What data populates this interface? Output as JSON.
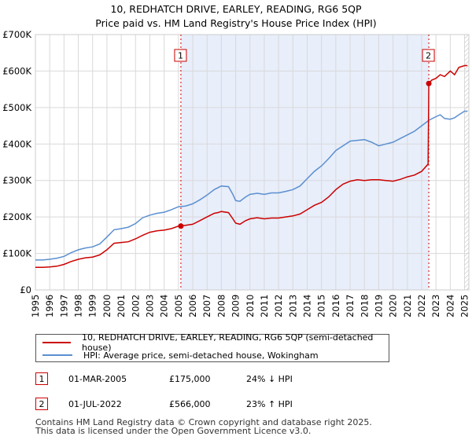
{
  "title": {
    "line1": "10, REDHATCH DRIVE, EARLEY, READING, RG6 5QP",
    "line2": "Price paid vs. HM Land Registry's House Price Index (HPI)"
  },
  "colors": {
    "property": "#cc0000",
    "hpi": "#5b8fd0",
    "shade": "#e8eefa",
    "marker_line": "#cc0000"
  },
  "chart_data": {
    "type": "line",
    "x_range": [
      1995.0,
      2025.3
    ],
    "ylim": [
      0,
      700000
    ],
    "y_ticks": [
      {
        "value": 0,
        "label": "£0"
      },
      {
        "value": 100000,
        "label": "£100K"
      },
      {
        "value": 200000,
        "label": "£200K"
      },
      {
        "value": 300000,
        "label": "£300K"
      },
      {
        "value": 400000,
        "label": "£400K"
      },
      {
        "value": 500000,
        "label": "£500K"
      },
      {
        "value": 600000,
        "label": "£600K"
      },
      {
        "value": 700000,
        "label": "£700K"
      }
    ],
    "x_ticks": [
      "1995",
      "1996",
      "1997",
      "1998",
      "1999",
      "2000",
      "2001",
      "2002",
      "2003",
      "2004",
      "2005",
      "2006",
      "2007",
      "2008",
      "2009",
      "2010",
      "2011",
      "2012",
      "2013",
      "2014",
      "2015",
      "2016",
      "2017",
      "2018",
      "2019",
      "2020",
      "2021",
      "2022",
      "2023",
      "2024",
      "2025"
    ],
    "shaded_period": [
      2005.17,
      2022.5
    ],
    "markers": [
      {
        "label": "1",
        "x": 2005.17,
        "y": 175000
      },
      {
        "label": "2",
        "x": 2022.5,
        "y": 566000
      }
    ],
    "series": [
      {
        "name": "10, REDHATCH DRIVE, EARLEY, READING, RG6 5QP (semi-detached house)",
        "x": [
          1995,
          1995.5,
          1996,
          1996.5,
          1997,
          1997.5,
          1998,
          1998.5,
          1999,
          1999.5,
          2000,
          2000.5,
          2001,
          2001.5,
          2002,
          2002.5,
          2003,
          2003.5,
          2004,
          2004.5,
          2005,
          2005.17,
          2005.5,
          2006,
          2006.5,
          2007,
          2007.5,
          2007.75,
          2008,
          2008.5,
          2008.8,
          2009,
          2009.3,
          2009.7,
          2010,
          2010.5,
          2011,
          2011.5,
          2012,
          2012.5,
          2013,
          2013.5,
          2014,
          2014.5,
          2015,
          2015.5,
          2016,
          2016.5,
          2017,
          2017.5,
          2018,
          2018.5,
          2019,
          2019.5,
          2020,
          2020.5,
          2021,
          2021.5,
          2022,
          2022.45,
          2022.5,
          2022.7,
          2023,
          2023.3,
          2023.6,
          2024,
          2024.3,
          2024.6,
          2025,
          2025.2
        ],
        "values": [
          62000,
          62000,
          63000,
          65000,
          70000,
          78000,
          84000,
          88000,
          90000,
          96000,
          110000,
          128000,
          130000,
          132000,
          140000,
          150000,
          158000,
          162000,
          164000,
          168000,
          175000,
          175000,
          177000,
          180000,
          190000,
          200000,
          210000,
          212000,
          215000,
          212000,
          195000,
          183000,
          180000,
          190000,
          195000,
          198000,
          195000,
          197000,
          197000,
          200000,
          203000,
          208000,
          220000,
          232000,
          240000,
          255000,
          275000,
          290000,
          298000,
          302000,
          300000,
          302000,
          302000,
          300000,
          298000,
          303000,
          310000,
          315000,
          325000,
          345000,
          566000,
          575000,
          580000,
          590000,
          585000,
          600000,
          590000,
          610000,
          615000,
          615000
        ]
      },
      {
        "name": "HPI: Average price, semi-detached house, Wokingham",
        "x": [
          1995,
          1995.5,
          1996,
          1996.5,
          1997,
          1997.5,
          1998,
          1998.5,
          1999,
          1999.5,
          2000,
          2000.5,
          2001,
          2001.5,
          2002,
          2002.5,
          2003,
          2003.5,
          2004,
          2004.5,
          2005,
          2005.5,
          2006,
          2006.5,
          2007,
          2007.5,
          2008,
          2008.5,
          2008.8,
          2009,
          2009.3,
          2009.7,
          2010,
          2010.5,
          2011,
          2011.5,
          2012,
          2012.5,
          2013,
          2013.5,
          2014,
          2014.5,
          2015,
          2015.5,
          2016,
          2016.5,
          2017,
          2017.5,
          2018,
          2018.5,
          2019,
          2019.5,
          2020,
          2020.5,
          2021,
          2021.5,
          2022,
          2022.5,
          2023,
          2023.3,
          2023.6,
          2024,
          2024.3,
          2024.6,
          2025,
          2025.2
        ],
        "values": [
          82000,
          82000,
          84000,
          87000,
          92000,
          102000,
          110000,
          115000,
          118000,
          126000,
          145000,
          165000,
          168000,
          172000,
          182000,
          198000,
          205000,
          210000,
          213000,
          220000,
          228000,
          230000,
          236000,
          247000,
          260000,
          275000,
          285000,
          283000,
          262000,
          245000,
          243000,
          255000,
          262000,
          265000,
          262000,
          266000,
          266000,
          270000,
          275000,
          285000,
          305000,
          325000,
          340000,
          360000,
          382000,
          395000,
          408000,
          410000,
          412000,
          405000,
          395000,
          400000,
          405000,
          415000,
          425000,
          435000,
          450000,
          465000,
          475000,
          480000,
          470000,
          468000,
          472000,
          480000,
          490000,
          490000
        ]
      }
    ]
  },
  "legend": {
    "property_label": "10, REDHATCH DRIVE, EARLEY, READING, RG6 5QP (semi-detached house)",
    "hpi_label": "HPI: Average price, semi-detached house, Wokingham"
  },
  "sales": [
    {
      "num": "1",
      "date": "01-MAR-2005",
      "price": "£175,000",
      "hpi": "24% ↓ HPI"
    },
    {
      "num": "2",
      "date": "01-JUL-2022",
      "price": "£566,000",
      "hpi": "23% ↑ HPI"
    }
  ],
  "footer": {
    "line1": "Contains HM Land Registry data © Crown copyright and database right 2025.",
    "line2": "This data is licensed under the Open Government Licence v3.0."
  }
}
